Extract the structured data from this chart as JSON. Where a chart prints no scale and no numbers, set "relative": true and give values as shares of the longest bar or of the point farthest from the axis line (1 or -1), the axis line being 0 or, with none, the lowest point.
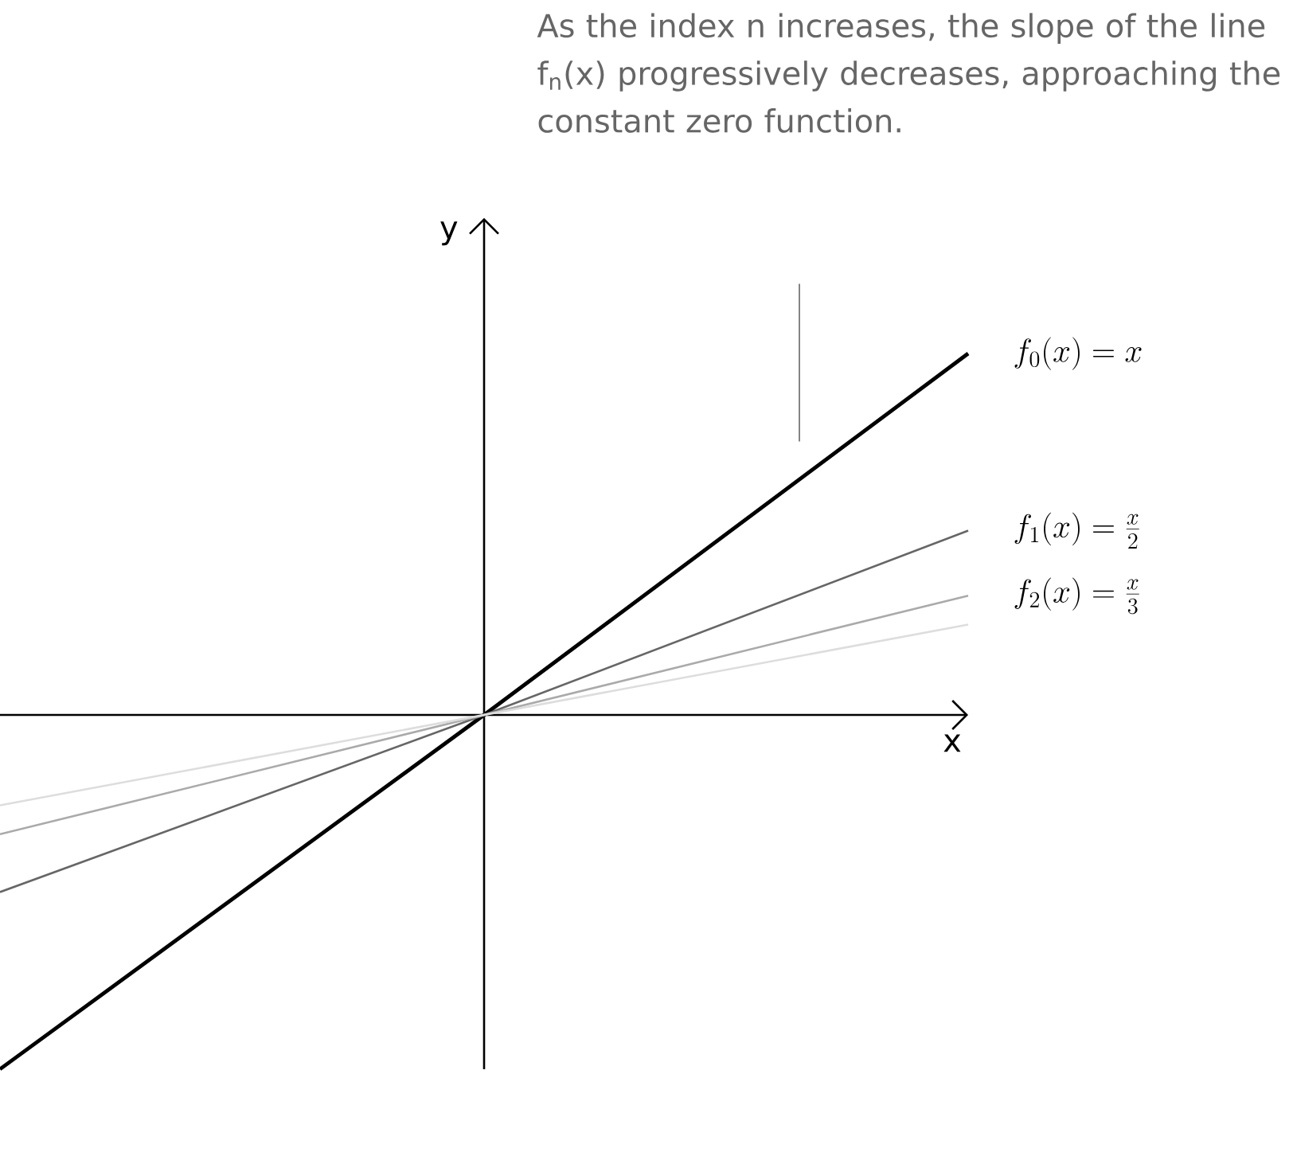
{
  "chart_data": {
    "type": "line",
    "relative": true,
    "xlabel": "x",
    "ylabel": "y",
    "line_style": "solid",
    "annotations": [
      "As the index n increases, the slope of the line f$_{n}$(x) progressively decreases, approaching the constant zero function."
    ],
    "categories": [
      null,
      null,
      null
    ],
    "series": [
      {
        "name": "f_{0}(x) = x",
        "color": "#000000",
        "values": [
          -0.98,
          0,
          1
        ]
      },
      {
        "name": "f_{1}(x) = \\frac{x}{2}",
        "color": "#666666",
        "values": [
          -0.49,
          0,
          0.51
        ]
      },
      {
        "name": "f_{2}(x) = \\frac{x}{3}",
        "color": "#aaaaaa",
        "values": [
          -0.33,
          0,
          0.33
        ]
      },
      {
        "color": "#dddddd",
        "values": [
          -0.25,
          0,
          0.25
        ]
      }
    ]
  }
}
